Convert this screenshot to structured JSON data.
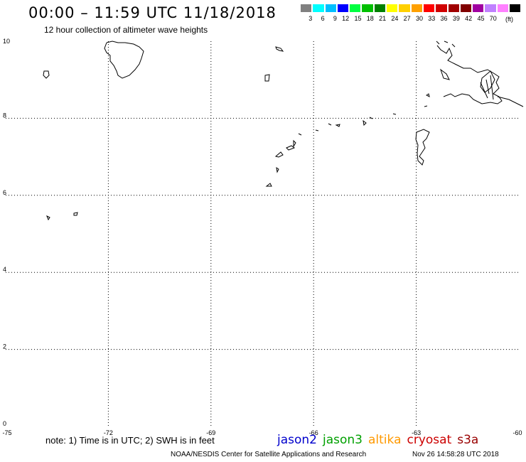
{
  "title": "00:00 – 11:59 UTC 11/18/2018",
  "subtitle": "12 hour collection of altimeter wave heights",
  "legend": {
    "unit": "(ft)",
    "colors": [
      "#808080",
      "#00ffff",
      "#00bfff",
      "#0000ff",
      "#00ff40",
      "#00c000",
      "#008000",
      "#ffff00",
      "#ffd000",
      "#ffa000",
      "#ff0000",
      "#d00000",
      "#a00000",
      "#800000",
      "#a000a0",
      "#c080ff",
      "#ff80ff",
      "#000000"
    ],
    "values": [
      "3",
      "6",
      "9",
      "12",
      "15",
      "18",
      "21",
      "24",
      "27",
      "30",
      "33",
      "36",
      "39",
      "42",
      "45",
      "70"
    ]
  },
  "map": {
    "lon_range": [
      -75,
      -60
    ],
    "lat_range": [
      0,
      10
    ],
    "x_ticks": [
      "-75",
      "-72",
      "-69",
      "-66",
      "-63",
      "-60"
    ],
    "y_ticks": [
      "0",
      "2",
      "4",
      "6",
      "8",
      "10"
    ]
  },
  "note": "note: 1) Time is in UTC; 2) SWH is in feet",
  "satellites": [
    {
      "name": "jason2",
      "color": "#0000cc"
    },
    {
      "name": "jason3",
      "color": "#00a000"
    },
    {
      "name": "altika",
      "color": "#ff9900"
    },
    {
      "name": "cryosat",
      "color": "#cc0000"
    },
    {
      "name": "s3a",
      "color": "#990000"
    }
  ],
  "credit": "NOAA/NESDIS Center for Satellite Applications and Research",
  "generated": "Nov 26 14:58:28 UTC 2018"
}
